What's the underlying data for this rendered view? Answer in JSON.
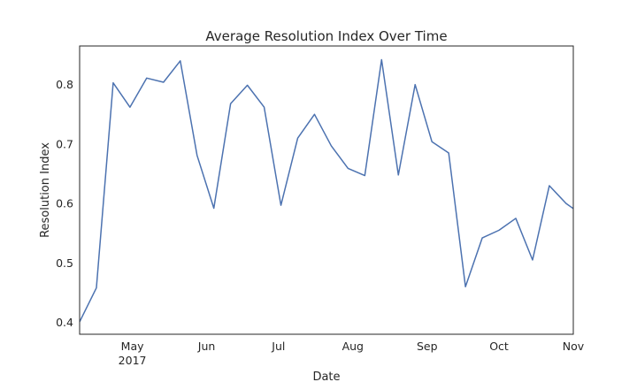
{
  "chart_data": {
    "type": "line",
    "title": "Average Resolution Index Over Time",
    "xlabel": "Date",
    "ylabel": "Resolution Index",
    "xlim": [
      "2017-04-09",
      "2017-11-01"
    ],
    "ylim": [
      0.38,
      0.865
    ],
    "grid": false,
    "x_ticks": [
      {
        "date": "2017-05-01",
        "label": "May",
        "sublabel": "2017"
      },
      {
        "date": "2017-06-01",
        "label": "Jun",
        "sublabel": ""
      },
      {
        "date": "2017-07-01",
        "label": "Jul",
        "sublabel": ""
      },
      {
        "date": "2017-08-01",
        "label": "Aug",
        "sublabel": ""
      },
      {
        "date": "2017-09-01",
        "label": "Sep",
        "sublabel": ""
      },
      {
        "date": "2017-10-01",
        "label": "Oct",
        "sublabel": ""
      },
      {
        "date": "2017-11-01",
        "label": "Nov",
        "sublabel": ""
      }
    ],
    "y_ticks": [
      {
        "value": 0.4,
        "label": "0.4"
      },
      {
        "value": 0.5,
        "label": "0.5"
      },
      {
        "value": 0.6,
        "label": "0.6"
      },
      {
        "value": 0.7,
        "label": "0.7"
      },
      {
        "value": 0.8,
        "label": "0.8"
      }
    ],
    "series": [
      {
        "color": "#4c72b0",
        "x": [
          "2017-04-09",
          "2017-04-16",
          "2017-04-23",
          "2017-04-30",
          "2017-05-07",
          "2017-05-14",
          "2017-05-21",
          "2017-05-28",
          "2017-06-04",
          "2017-06-11",
          "2017-06-18",
          "2017-06-25",
          "2017-07-02",
          "2017-07-09",
          "2017-07-16",
          "2017-07-23",
          "2017-07-30",
          "2017-08-06",
          "2017-08-13",
          "2017-08-20",
          "2017-08-27",
          "2017-09-03",
          "2017-09-10",
          "2017-09-17",
          "2017-09-24",
          "2017-10-01",
          "2017-10-08",
          "2017-10-15",
          "2017-10-22",
          "2017-10-29",
          "2017-11-05"
        ],
        "values": [
          0.401,
          0.458,
          0.803,
          0.762,
          0.811,
          0.804,
          0.84,
          0.681,
          0.592,
          0.768,
          0.799,
          0.762,
          0.597,
          0.71,
          0.75,
          0.697,
          0.659,
          0.647,
          0.842,
          0.648,
          0.8,
          0.704,
          0.685,
          0.46,
          0.542,
          0.555,
          0.575,
          0.505,
          0.63,
          0.6,
          0.58
        ]
      }
    ]
  }
}
